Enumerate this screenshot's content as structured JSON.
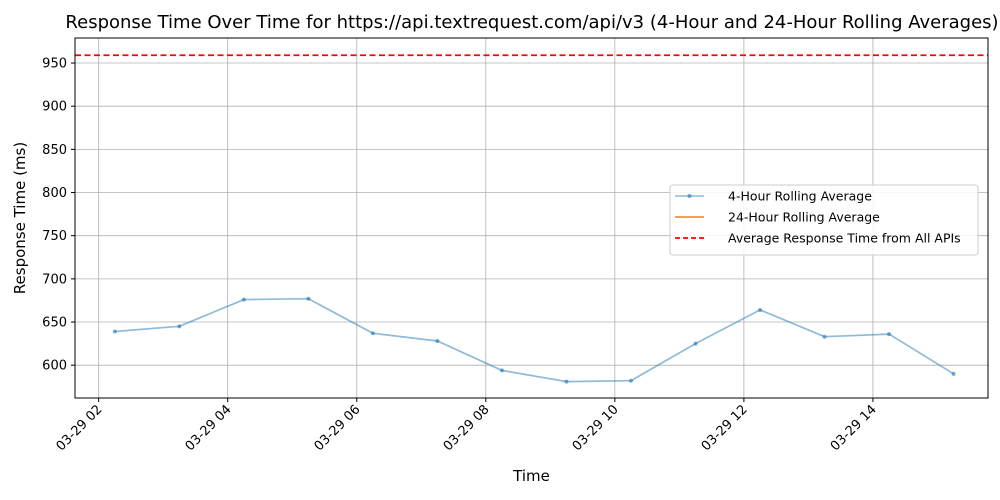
{
  "chart_data": {
    "type": "line",
    "title": "Response Time Over Time for https://api.textrequest.com/api/v3 (4-Hour and 24-Hour Rolling Averages)",
    "xlabel": "Time",
    "ylabel": "Response Time (ms)",
    "xlim": [
      "03-29 01:38",
      "03-29 15:47"
    ],
    "ylim": [
      562,
      979
    ],
    "x_ticks": [
      {
        "label": "03-29 02",
        "hour": 2
      },
      {
        "label": "03-29 04",
        "hour": 4
      },
      {
        "label": "03-29 06",
        "hour": 6
      },
      {
        "label": "03-29 08",
        "hour": 8
      },
      {
        "label": "03-29 10",
        "hour": 10
      },
      {
        "label": "03-29 12",
        "hour": 12
      },
      {
        "label": "03-29 14",
        "hour": 14
      }
    ],
    "y_ticks": [
      600,
      650,
      700,
      750,
      800,
      850,
      900,
      950
    ],
    "grid": true,
    "legend_position": "center-right",
    "series": [
      {
        "name": "4-Hour Rolling Average",
        "color": "#1f77b4",
        "style": "line-with-markers",
        "x": [
          "03-29 02:15",
          "03-29 03:15",
          "03-29 04:15",
          "03-29 05:15",
          "03-29 06:15",
          "03-29 07:15",
          "03-29 08:15",
          "03-29 09:15",
          "03-29 10:15",
          "03-29 11:15",
          "03-29 12:15",
          "03-29 13:15",
          "03-29 14:15",
          "03-29 15:15"
        ],
        "values": [
          639,
          645,
          676,
          677,
          637,
          628,
          594,
          581,
          582,
          625,
          664,
          633,
          636,
          590
        ]
      },
      {
        "name": "24-Hour Rolling Average",
        "color": "#ff7f0e",
        "style": "line",
        "x": [],
        "values": []
      },
      {
        "name": "Average Response Time from All APIs",
        "color": "#ff0000",
        "style": "dashed",
        "value": 959
      }
    ]
  }
}
